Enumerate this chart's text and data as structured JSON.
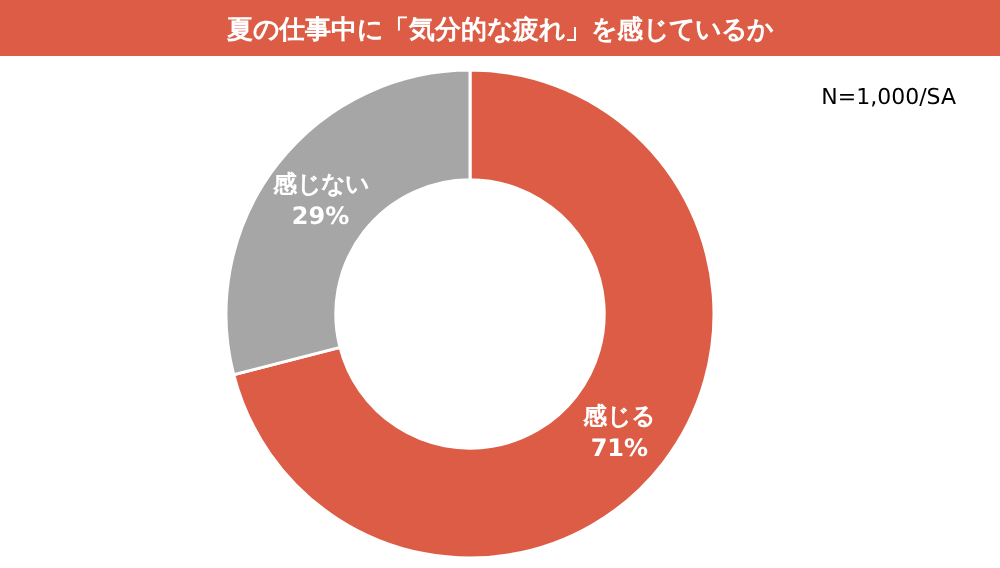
{
  "chart_data": {
    "type": "donut",
    "title": "夏の仕事中に「気分的な疲れ」を感じているか",
    "categories": [
      "感じる",
      "感じない"
    ],
    "values": [
      71,
      29
    ],
    "value_labels": [
      "71%",
      "29%"
    ],
    "colors": [
      "#dc5c45",
      "#a6a6a6"
    ],
    "annotations": [
      "N=1,000/SA"
    ]
  }
}
